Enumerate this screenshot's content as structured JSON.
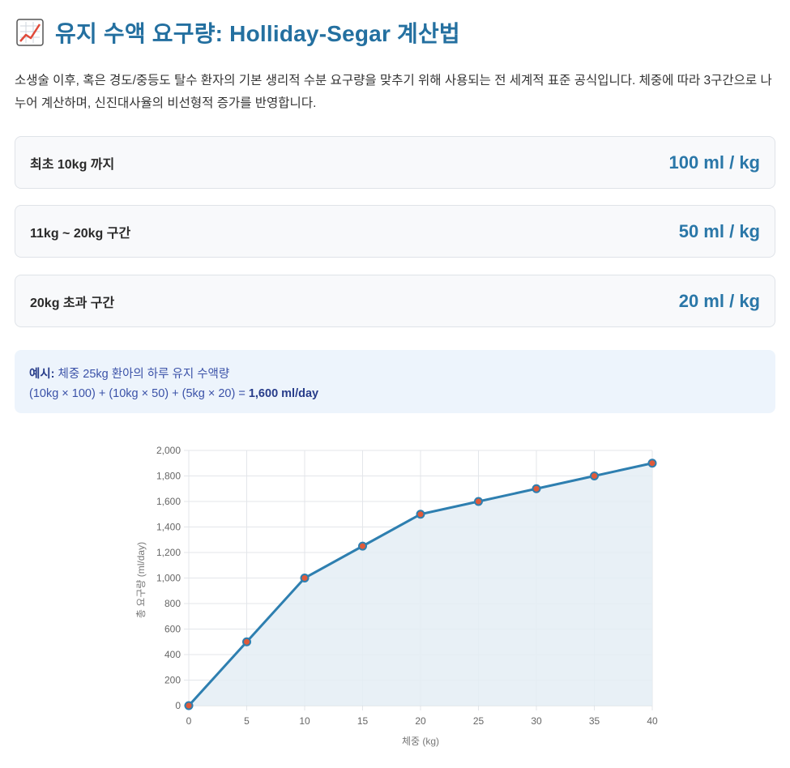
{
  "header": {
    "icon": "chart-increasing-icon",
    "title": "유지 수액 요구량: Holliday-Segar 계산법"
  },
  "description": "소생술 이후, 혹은 경도/중등도 탈수 환자의 기본 생리적 수분 요구량을 맞추기 위해 사용되는 전 세계적 표준 공식입니다. 체중에 따라 3구간으로 나누어 계산하며, 신진대사율의 비선형적 증가를 반영합니다.",
  "rules": [
    {
      "label": "최초 10kg 까지",
      "value": "100 ml / kg"
    },
    {
      "label": "11kg ~ 20kg 구간",
      "value": "50 ml / kg"
    },
    {
      "label": "20kg 초과 구간",
      "value": "20 ml / kg"
    }
  ],
  "example": {
    "prefix": "예시:",
    "text": "체중 25kg 환아의 하루 유지 수액량",
    "formula": "(10kg × 100) + (10kg × 50) + (5kg × 20) =",
    "result": "1,600 ml/day"
  },
  "colors": {
    "accent": "#2a77a8",
    "line": "#2e7fb0",
    "point": "#e05a3a",
    "fill": "#e4edf5"
  },
  "chart_data": {
    "type": "area",
    "x": [
      0,
      5,
      10,
      15,
      20,
      25,
      30,
      35,
      40
    ],
    "series": [
      {
        "values": [
          0,
          500,
          1000,
          1250,
          1500,
          1600,
          1700,
          1800,
          1900
        ]
      }
    ],
    "xlabel": "체중 (kg)",
    "ylabel": "총 요구량 (ml/day)",
    "xlim": [
      0,
      40
    ],
    "ylim": [
      0,
      2000
    ],
    "xticks": [
      "0",
      "5",
      "10",
      "15",
      "20",
      "25",
      "30",
      "35",
      "40"
    ],
    "yticks": [
      "0",
      "200",
      "400",
      "600",
      "800",
      "1,000",
      "1,200",
      "1,400",
      "1,600",
      "1,800",
      "2,000"
    ],
    "grid": true,
    "legend": "none"
  }
}
